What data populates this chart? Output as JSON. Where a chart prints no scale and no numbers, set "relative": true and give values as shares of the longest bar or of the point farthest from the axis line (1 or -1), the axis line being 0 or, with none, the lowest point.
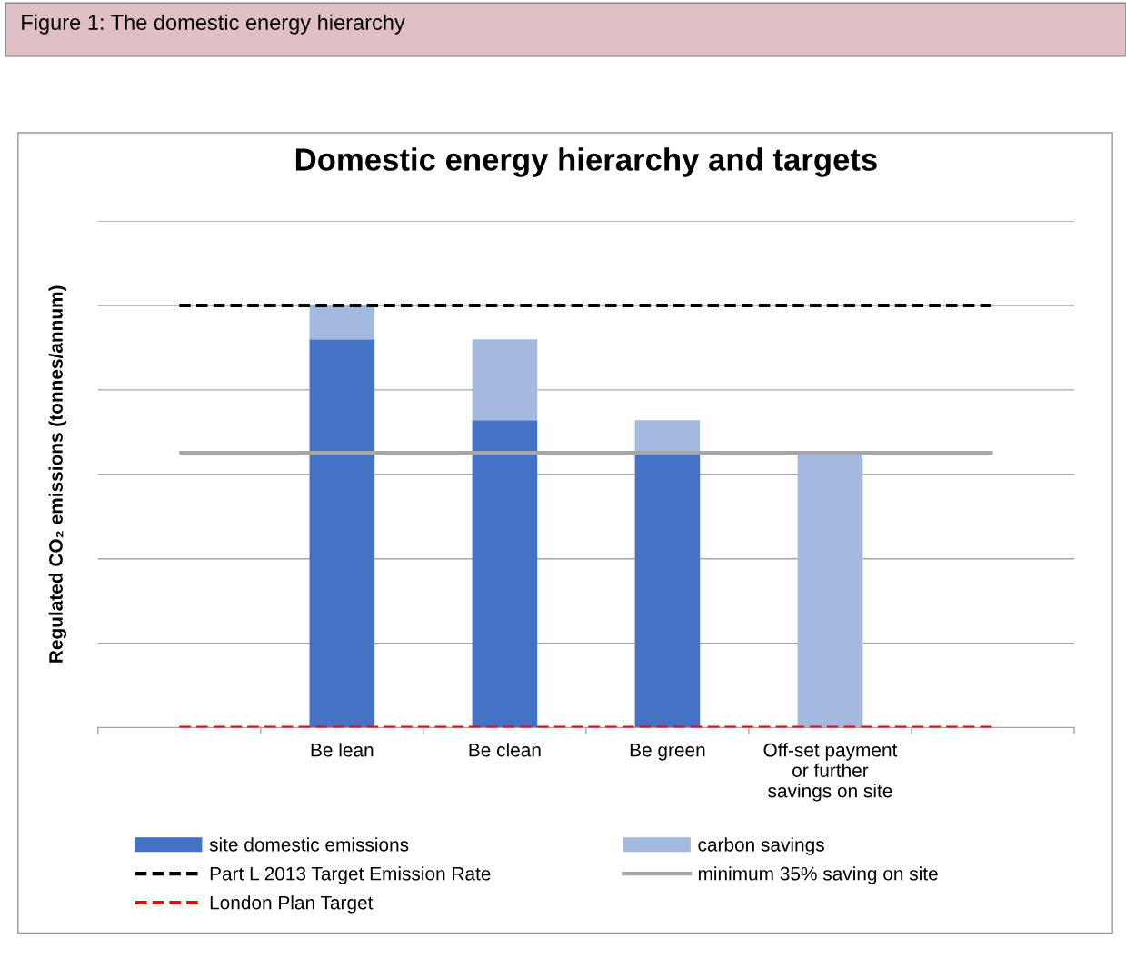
{
  "chart_data": {
    "type": "bar",
    "title": "Domestic energy hierarchy and targets",
    "ylabel": "Regulated CO₂ emissions (tonnes/annum)",
    "annotations": [
      "Figure 1: The domestic energy hierarchy"
    ],
    "categories": [
      null,
      "Be lean",
      "Be clean",
      "Be green",
      "Off-set payment\nor further\nsavings on site",
      null
    ],
    "relative": true,
    "stacked": true,
    "grid": "y",
    "legend": "bottom",
    "series": [
      {
        "name": "site domestic emissions",
        "color": "#4472c4",
        "values": [
          null,
          0.92,
          0.728,
          0.651,
          0,
          null
        ]
      },
      {
        "name": "carbon savings",
        "color": "#a3b9e0",
        "values": [
          null,
          0.08,
          0.192,
          0.077,
          0.651,
          null
        ]
      }
    ],
    "ref_lines": [
      {
        "axis": "y",
        "value": 1,
        "label": "Part L 2013 Target Emission Rate",
        "color": "#000000",
        "line_style": "dashed"
      },
      {
        "axis": "y",
        "value": 0.651,
        "label": "minimum 35% saving on site",
        "color": "#a6a6a6",
        "line_style": "solid"
      },
      {
        "axis": "y",
        "value": 0,
        "label": "London Plan Target",
        "color": "#ff0000",
        "line_style": "dashed"
      }
    ]
  }
}
